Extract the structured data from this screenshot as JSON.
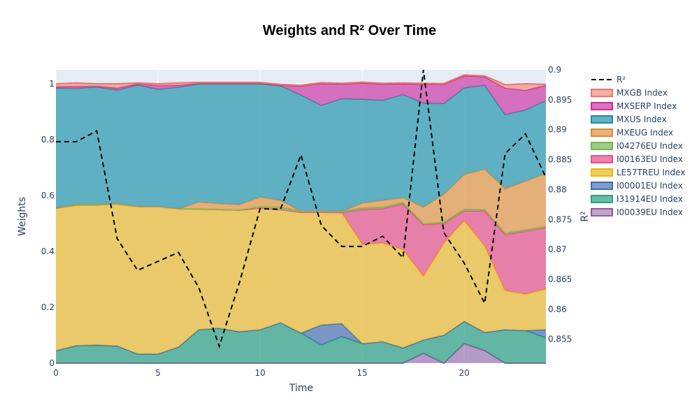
{
  "chart_data": {
    "type": "area",
    "title": "Weights and R² Over Time",
    "xlabel": "Time",
    "ylabel": "Weights",
    "y2label": "R²",
    "xlim": [
      0,
      24
    ],
    "ylim": [
      0,
      1.05
    ],
    "y2lim": [
      0.851,
      0.9
    ],
    "x_ticks": [
      0,
      5,
      10,
      15,
      20
    ],
    "y_ticks": [
      0,
      0.2,
      0.4,
      0.6,
      0.8,
      1
    ],
    "y_tick_labels": [
      "0",
      "0.2",
      "0.4",
      "0.6",
      "0.8",
      "1"
    ],
    "y2_ticks": [
      0.855,
      0.86,
      0.865,
      0.87,
      0.875,
      0.88,
      0.885,
      0.89,
      0.895,
      0.9
    ],
    "y2_tick_labels": [
      "0.855",
      "0.86",
      "0.865",
      "0.87",
      "0.875",
      "0.88",
      "0.885",
      "0.89",
      "0.895",
      "0.9"
    ],
    "x": [
      0,
      1,
      2,
      3,
      4,
      5,
      6,
      7,
      8,
      9,
      10,
      11,
      12,
      13,
      14,
      15,
      16,
      17,
      18,
      19,
      20,
      21,
      22,
      23,
      24
    ],
    "stacked_series": [
      {
        "name": "I00039EU Index",
        "color": "#8e5aa0",
        "fill": "rgba(142,90,160,0.55)",
        "values": [
          0,
          0,
          0,
          0,
          0,
          0,
          0,
          0,
          0,
          0,
          0,
          0,
          0,
          0,
          0,
          0,
          0,
          0,
          0.035,
          0,
          0.07,
          0.045,
          0,
          0,
          0
        ]
      },
      {
        "name": "I31914EU Index",
        "color": "#2ba080",
        "fill": "rgba(43,160,128,0.7)",
        "values": [
          0.045,
          0.063,
          0.065,
          0.062,
          0.033,
          0.033,
          0.058,
          0.12,
          0.125,
          0.113,
          0.12,
          0.145,
          0.108,
          0.065,
          0.095,
          0.07,
          0.077,
          0.055,
          0.048,
          0.1,
          0.08,
          0.065,
          0.12,
          0.117,
          0.09
        ]
      },
      {
        "name": "I00001EU Index",
        "color": "#3a6aaa",
        "fill": "rgba(76,114,176,0.7)",
        "values": [
          0,
          0,
          0,
          0,
          0,
          0,
          0,
          0,
          0,
          0,
          0,
          0,
          0,
          0.072,
          0.047,
          0,
          0,
          0,
          0,
          0,
          0,
          0,
          0,
          0,
          0.03
        ]
      },
      {
        "name": "LE57TREU Index",
        "color": "#f2b800",
        "fill": "rgba(234,195,80,0.85)",
        "values": [
          0.51,
          0.503,
          0.502,
          0.508,
          0.528,
          0.528,
          0.495,
          0.432,
          0.425,
          0.435,
          0.435,
          0.405,
          0.432,
          0.403,
          0.397,
          0.355,
          0.353,
          0.352,
          0.228,
          0.33,
          0.36,
          0.31,
          0.14,
          0.13,
          0.145
        ]
      },
      {
        "name": "I00163EU Index",
        "color": "#e8508a",
        "fill": "rgba(230,100,150,0.8)",
        "values": [
          0,
          0,
          0,
          0,
          0,
          0,
          0,
          0,
          0,
          0,
          0,
          0,
          0,
          0,
          0,
          0.125,
          0.123,
          0.163,
          0.185,
          0.07,
          0.035,
          0.125,
          0.2,
          0.225,
          0.22
        ]
      },
      {
        "name": "I04276EU Index",
        "color": "#6fb847",
        "fill": "rgba(140,190,110,0.8)",
        "values": [
          0,
          0,
          0,
          0,
          0,
          0,
          0,
          0,
          0,
          0,
          0.005,
          0.008,
          0.005,
          0.005,
          0.005,
          0.005,
          0.005,
          0.005,
          0.003,
          0.005,
          0.006,
          0.005,
          0.005,
          0.005,
          0.005
        ]
      },
      {
        "name": "MXEUG Index",
        "color": "#e08a30",
        "fill": "rgba(228,160,90,0.8)",
        "values": [
          0,
          0.003,
          0.002,
          0.003,
          0,
          0,
          0,
          0.025,
          0.022,
          0.02,
          0.035,
          0.025,
          0,
          0,
          0,
          0.018,
          0.025,
          0.018,
          0.06,
          0.1,
          0.125,
          0.145,
          0.16,
          0.175,
          0.19
        ]
      },
      {
        "name": "MXUS Index",
        "color": "#2a8a98",
        "fill": "rgba(80,170,190,0.9)",
        "values": [
          0.43,
          0.415,
          0.42,
          0.405,
          0.435,
          0.42,
          0.435,
          0.423,
          0.428,
          0.432,
          0.405,
          0.41,
          0.415,
          0.378,
          0.403,
          0.372,
          0.358,
          0.369,
          0.372,
          0.325,
          0.31,
          0.3,
          0.265,
          0.255,
          0.26
        ]
      },
      {
        "name": "MXSERP Index",
        "color": "#d02e8c",
        "fill": "rgba(210,90,180,0.85)",
        "values": [
          0.005,
          0.007,
          0.003,
          0.007,
          0.004,
          0.013,
          0.007,
          0.002,
          0.002,
          0.002,
          0.002,
          0.002,
          0.032,
          0.078,
          0.052,
          0.058,
          0.058,
          0.038,
          0.068,
          0.068,
          0.043,
          0.03,
          0.095,
          0.07,
          0.055
        ]
      },
      {
        "name": "MXGB Index",
        "color": "#e87868",
        "fill": "rgba(242,160,150,0.85)",
        "values": [
          0.01,
          0.012,
          0.008,
          0.015,
          0.003,
          0.006,
          0.008,
          0.003,
          0.003,
          0.003,
          0.003,
          0.003,
          0.003,
          0.003,
          0.003,
          0.003,
          0.003,
          0.003,
          0.003,
          0.003,
          0.003,
          0.003,
          0.012,
          0.023,
          0.003
        ]
      }
    ],
    "line_series": {
      "name": "R²",
      "color": "#000000",
      "dash": "dashed",
      "axis": "right",
      "values": [
        0.888,
        0.888,
        0.8898,
        0.8718,
        0.8665,
        0.868,
        0.8695,
        0.8636,
        0.8538,
        0.8646,
        0.8768,
        0.8767,
        0.8858,
        0.874,
        0.8705,
        0.8705,
        0.8722,
        0.8686,
        0.9,
        0.8728,
        0.8677,
        0.861,
        0.886,
        0.8893,
        0.882
      ]
    },
    "legend": {
      "placement": "right",
      "entries": [
        {
          "name": "R²",
          "kind": "line"
        },
        {
          "name": "MXGB Index",
          "kind": "area"
        },
        {
          "name": "MXSERP Index",
          "kind": "area"
        },
        {
          "name": "MXUS Index",
          "kind": "area"
        },
        {
          "name": "MXEUG Index",
          "kind": "area"
        },
        {
          "name": "I04276EU Index",
          "kind": "area"
        },
        {
          "name": "I00163EU Index",
          "kind": "area"
        },
        {
          "name": "LE57TREU Index",
          "kind": "area"
        },
        {
          "name": "I00001EU Index",
          "kind": "area"
        },
        {
          "name": "I31914EU Index",
          "kind": "area"
        },
        {
          "name": "I00039EU Index",
          "kind": "area"
        }
      ]
    },
    "colors": {
      "plot_background": "#e5ecf6",
      "grid": "#ffffff",
      "text": "#2a3f5f"
    },
    "grid": true
  }
}
